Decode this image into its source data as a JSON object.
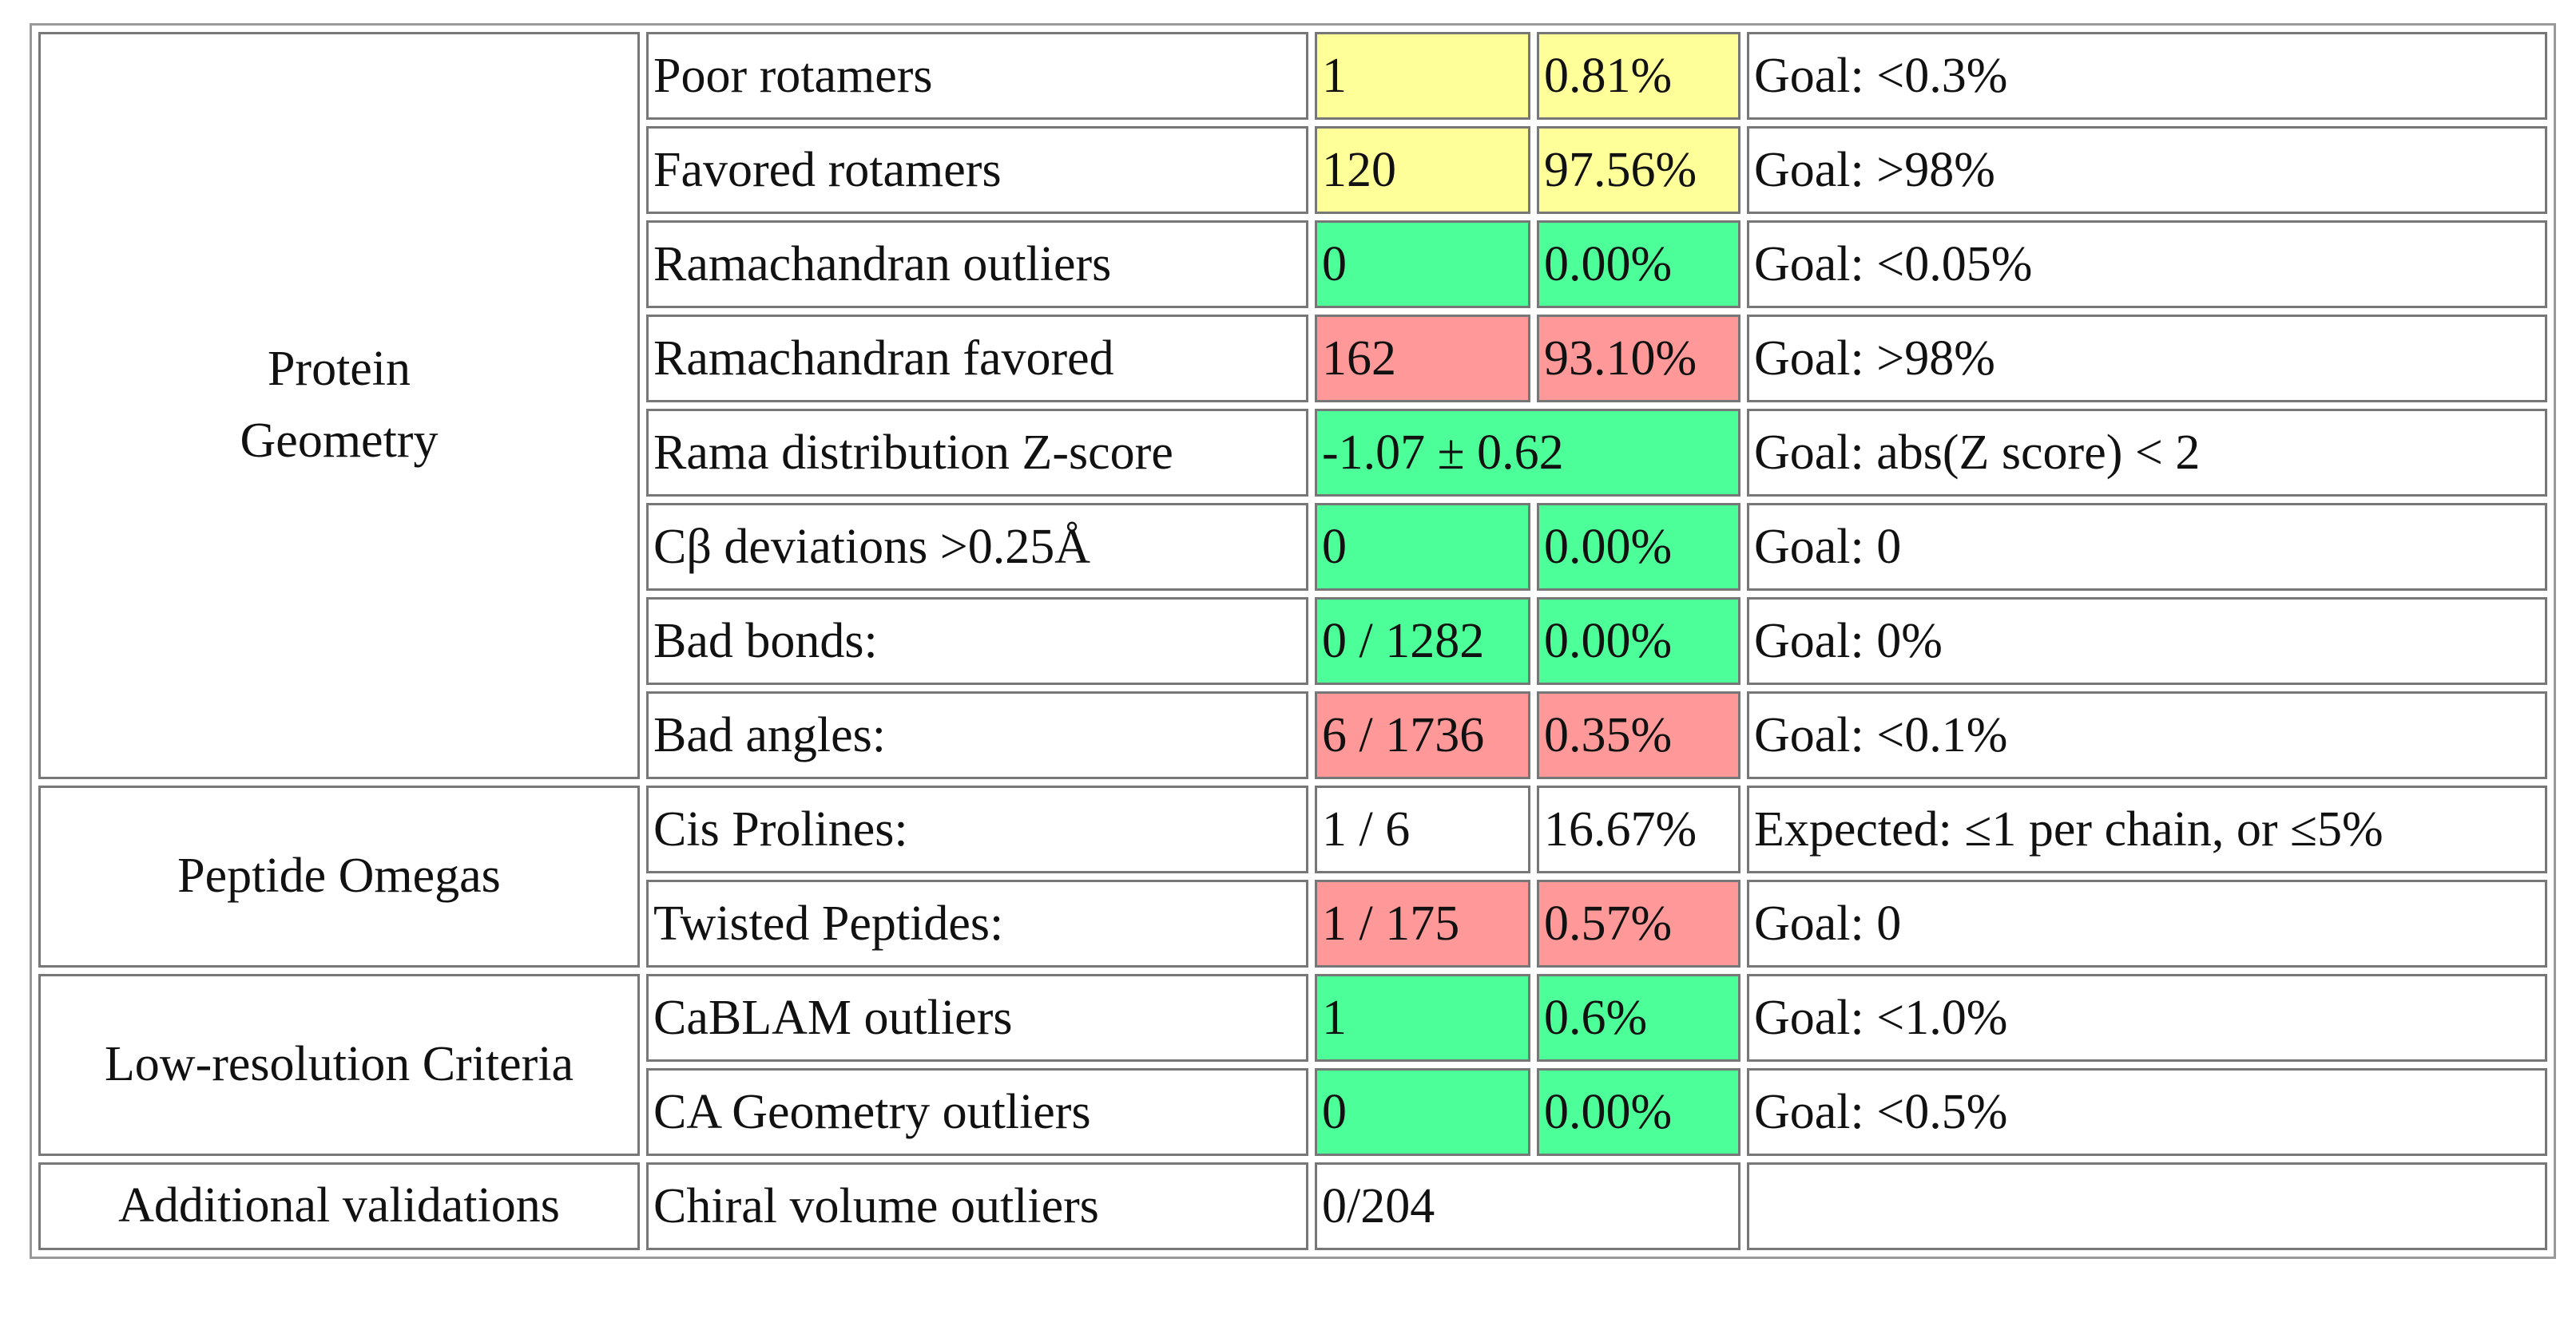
{
  "groups": [
    {
      "label": "Protein\nGeometry",
      "rows": [
        {
          "metric": "Poor rotamers",
          "count": "1",
          "percent": "0.81%",
          "goal": "Goal: <0.3%",
          "color": "#ffff99"
        },
        {
          "metric": "Favored rotamers",
          "count": "120",
          "percent": "97.56%",
          "goal": "Goal: >98%",
          "color": "#ffff99"
        },
        {
          "metric": "Ramachandran outliers",
          "count": "0",
          "percent": "0.00%",
          "goal": "Goal: <0.05%",
          "color": "#4dff99"
        },
        {
          "metric": "Ramachandran favored",
          "count": "162",
          "percent": "93.10%",
          "goal": "Goal: >98%",
          "color": "#ff9999"
        },
        {
          "metric": "Rama distribution Z-score",
          "value": "-1.07 ± 0.62",
          "goal": "Goal: abs(Z score) < 2",
          "color": "#4dff99"
        },
        {
          "metric": "Cβ deviations >0.25Å",
          "count": "0",
          "percent": "0.00%",
          "goal": "Goal: 0",
          "color": "#4dff99"
        },
        {
          "metric": "Bad bonds:",
          "count": "0 / 1282",
          "percent": "0.00%",
          "goal": "Goal: 0%",
          "color": "#4dff99"
        },
        {
          "metric": "Bad angles:",
          "count": "6 / 1736",
          "percent": "0.35%",
          "goal": "Goal: <0.1%",
          "color": "#ff9999"
        }
      ]
    },
    {
      "label": "Peptide Omegas",
      "rows": [
        {
          "metric": "Cis Prolines:",
          "count": "1 / 6",
          "percent": "16.67%",
          "goal": "Expected: ≤1 per chain, or ≤5%"
        },
        {
          "metric": "Twisted Peptides:",
          "count": "1 / 175",
          "percent": "0.57%",
          "goal": "Goal: 0",
          "color": "#ff9999"
        }
      ]
    },
    {
      "label": "Low-resolution Criteria",
      "rows": [
        {
          "metric": "CaBLAM outliers",
          "count": "1",
          "percent": "0.6%",
          "goal": "Goal: <1.0%",
          "color": "#4dff99"
        },
        {
          "metric": "CA Geometry outliers",
          "count": "0",
          "percent": "0.00%",
          "goal": "Goal: <0.5%",
          "color": "#4dff99"
        }
      ]
    },
    {
      "label": "Additional validations",
      "rows": [
        {
          "metric": "Chiral volume outliers",
          "value": "0/204"
        }
      ]
    }
  ]
}
